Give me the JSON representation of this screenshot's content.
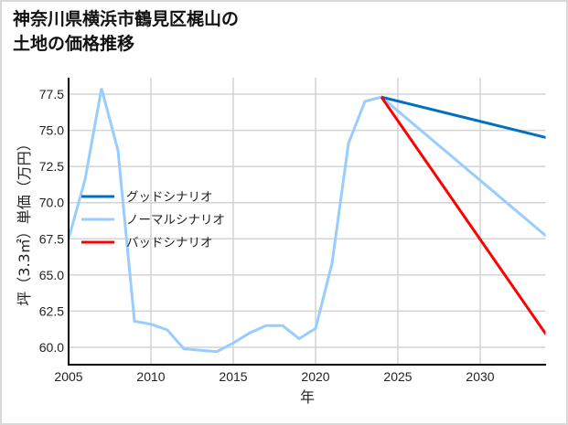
{
  "title_line1": "神奈川県横浜市鶴見区梶山の",
  "title_line2": "土地の価格推移",
  "chart_data": {
    "type": "line",
    "title": "神奈川県横浜市鶴見区梶山の土地の価格推移",
    "xlabel": "年",
    "ylabel": "坪（3.3㎡）単価（万円）",
    "xlim": [
      2005,
      2034
    ],
    "ylim": [
      58.8,
      78.6
    ],
    "x_ticks": [
      "2005",
      "2010",
      "2015",
      "2020",
      "2025",
      "2030"
    ],
    "y_ticks": [
      "60.0",
      "62.5",
      "65.0",
      "67.5",
      "70.0",
      "72.5",
      "75.0",
      "77.5"
    ],
    "grid": true,
    "legend_position": "center-left",
    "series": [
      {
        "name": "グッドシナリオ",
        "color": "#0070c0",
        "x": [
          2024,
          2034
        ],
        "values": [
          77.3,
          74.5
        ]
      },
      {
        "name": "ノーマルシナリオ",
        "color": "#99ccff",
        "x": [
          2005,
          2006,
          2007,
          2008,
          2009,
          2010,
          2011,
          2012,
          2013,
          2014,
          2015,
          2016,
          2017,
          2018,
          2019,
          2020,
          2021,
          2022,
          2023,
          2024,
          2034
        ],
        "values": [
          67.5,
          71.6,
          77.9,
          73.6,
          61.8,
          61.6,
          61.2,
          59.9,
          59.8,
          59.7,
          60.3,
          61.0,
          61.5,
          61.5,
          60.6,
          61.3,
          65.8,
          74.1,
          77.0,
          77.3,
          67.7
        ]
      },
      {
        "name": "バッドシナリオ",
        "color": "#ff0000",
        "x": [
          2024,
          2034
        ],
        "values": [
          77.3,
          60.9
        ]
      }
    ]
  }
}
